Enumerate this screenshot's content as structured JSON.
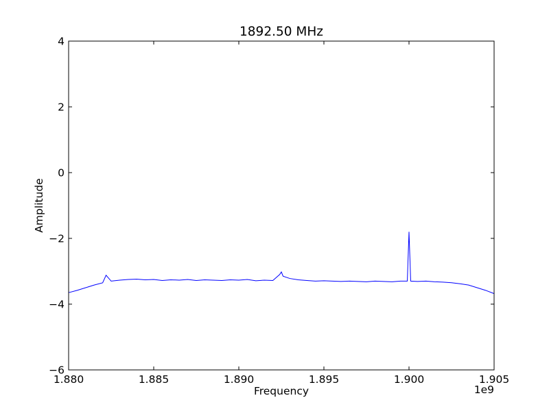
{
  "chart_data": {
    "type": "line",
    "title": "1892.50 MHz",
    "xlabel": "Frequency",
    "ylabel": "Amplitude",
    "x_offset_label": "1e9",
    "xlim": [
      1.88,
      1.905
    ],
    "ylim": [
      -6,
      4
    ],
    "x_ticks": [
      1.88,
      1.885,
      1.89,
      1.895,
      1.9,
      1.905
    ],
    "x_tick_labels": [
      "1.880",
      "1.885",
      "1.890",
      "1.895",
      "1.900",
      "1.905"
    ],
    "y_ticks": [
      4,
      2,
      0,
      -2,
      -4,
      -6
    ],
    "y_tick_labels": [
      "4",
      "2",
      "0",
      "−2",
      "−4",
      "−6"
    ],
    "grid": false,
    "series": [
      {
        "color": "#0000ff",
        "x": [
          1.88,
          1.8805,
          1.881,
          1.8815,
          1.882,
          1.8822,
          1.8825,
          1.883,
          1.8835,
          1.884,
          1.8845,
          1.885,
          1.8855,
          1.886,
          1.8865,
          1.887,
          1.8875,
          1.888,
          1.8885,
          1.889,
          1.8895,
          1.89,
          1.8905,
          1.891,
          1.8915,
          1.892,
          1.8924,
          1.8925,
          1.8926,
          1.893,
          1.8935,
          1.894,
          1.8945,
          1.895,
          1.8955,
          1.896,
          1.8965,
          1.897,
          1.8975,
          1.898,
          1.8985,
          1.899,
          1.8995,
          1.8999,
          1.9,
          1.9001,
          1.9005,
          1.901,
          1.9015,
          1.902,
          1.9025,
          1.903,
          1.9035,
          1.904,
          1.9045,
          1.905
        ],
        "y": [
          -3.65,
          -3.58,
          -3.5,
          -3.42,
          -3.35,
          -3.12,
          -3.3,
          -3.27,
          -3.25,
          -3.24,
          -3.26,
          -3.25,
          -3.28,
          -3.26,
          -3.27,
          -3.25,
          -3.28,
          -3.26,
          -3.27,
          -3.28,
          -3.26,
          -3.27,
          -3.25,
          -3.29,
          -3.27,
          -3.28,
          -3.1,
          -3.02,
          -3.15,
          -3.22,
          -3.26,
          -3.28,
          -3.3,
          -3.29,
          -3.3,
          -3.31,
          -3.3,
          -3.31,
          -3.32,
          -3.3,
          -3.31,
          -3.32,
          -3.3,
          -3.3,
          -1.8,
          -3.3,
          -3.31,
          -3.3,
          -3.32,
          -3.33,
          -3.35,
          -3.38,
          -3.42,
          -3.5,
          -3.58,
          -3.68
        ]
      }
    ]
  }
}
